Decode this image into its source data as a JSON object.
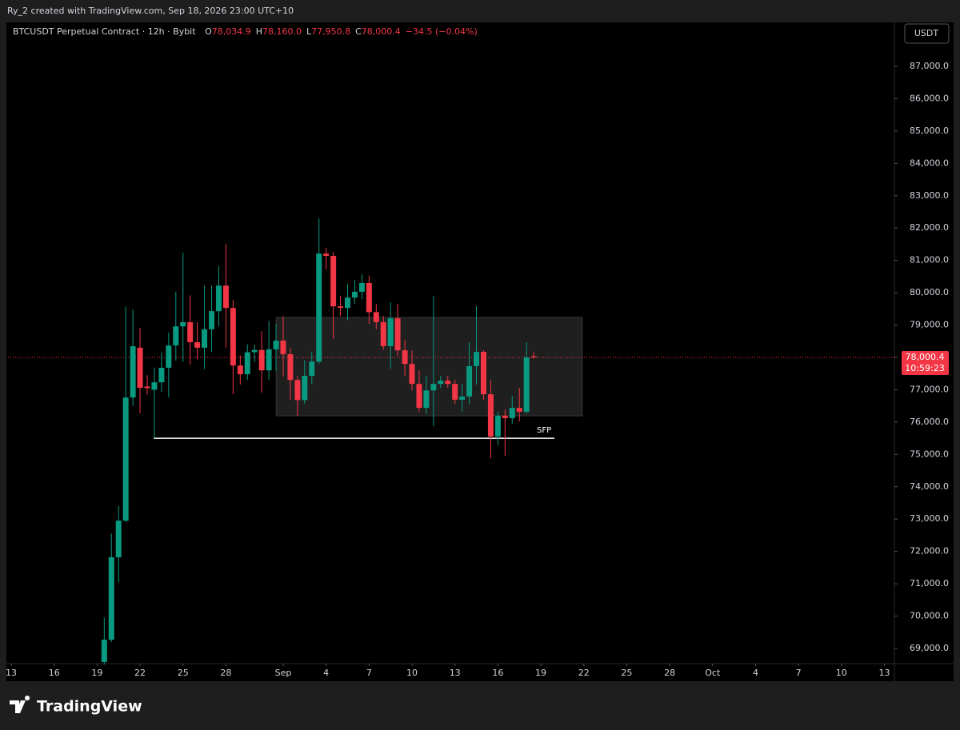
{
  "header": {
    "text": "Ry_2 created with TradingView.com, Sep 18, 2026 23:00 UTC+10"
  },
  "footer": {
    "logo": "TradingView"
  },
  "chart_data": {
    "type": "candlestick",
    "title": "BTCUSDT Perpetual Contract · 12h · Bybit",
    "legend": [
      {
        "label": "O",
        "value": "78,034.9"
      },
      {
        "label": "H",
        "value": "78,160.0"
      },
      {
        "label": "L",
        "value": "77,950.8"
      },
      {
        "label": "C",
        "value": "78,000.4"
      }
    ],
    "change": "−34.5 (−0.04%)",
    "currency": "USDT",
    "last_price_label": "78,000.4",
    "countdown": "10:59:23",
    "up_color": "#089981",
    "down_color": "#f23645",
    "x": [
      13,
      14,
      15,
      16,
      17,
      18,
      19,
      20,
      21,
      22,
      23,
      24,
      25,
      26,
      27,
      28,
      29,
      30,
      31,
      32,
      33,
      34,
      35,
      36,
      37,
      38,
      39,
      40,
      41,
      42,
      43,
      44,
      45,
      46,
      47,
      48,
      49,
      50,
      51,
      52,
      53,
      54,
      55,
      56,
      57,
      58,
      59,
      60,
      61,
      62,
      63,
      64,
      65,
      66,
      67,
      68,
      69,
      70,
      71,
      72,
      73
    ],
    "open": [
      68580,
      69270,
      71820,
      72950,
      76760,
      78300,
      77100,
      77000,
      77230,
      77680,
      78370,
      78960,
      79090,
      78470,
      78300,
      78870,
      79430,
      80220,
      79530,
      77750,
      77480,
      78160,
      78230,
      77600,
      78250,
      78520,
      78100,
      77300,
      76680,
      77430,
      77870,
      81210,
      81140,
      79580,
      79530,
      79850,
      80030,
      80300,
      79400,
      79090,
      78350,
      79210,
      78220,
      77800,
      77180,
      76440,
      76980,
      77180,
      77280,
      77180,
      76690,
      76790,
      77730,
      78170,
      76860,
      75550,
      76200,
      76120,
      76440,
      76320,
      78034.9
    ],
    "high": [
      69950,
      72550,
      73400,
      79580,
      79480,
      78910,
      77450,
      77680,
      78150,
      78760,
      80030,
      81240,
      79920,
      79090,
      80220,
      80220,
      80820,
      81510,
      79780,
      78060,
      78400,
      78400,
      78810,
      79130,
      79040,
      79280,
      78300,
      77430,
      77920,
      78170,
      82300,
      81380,
      81260,
      79900,
      80280,
      80400,
      80570,
      80530,
      79650,
      79280,
      79700,
      79650,
      78540,
      78220,
      77600,
      77430,
      79900,
      77430,
      77430,
      77310,
      77180,
      78470,
      79580,
      78220,
      77300,
      76320,
      76390,
      76810,
      77060,
      78470,
      78160
    ],
    "low": [
      68500,
      69200,
      71050,
      72900,
      76500,
      76270,
      76850,
      75500,
      76930,
      76770,
      77900,
      77860,
      77780,
      77940,
      77640,
      78170,
      78960,
      78300,
      76860,
      77160,
      77310,
      77850,
      76910,
      77310,
      77580,
      77410,
      76690,
      76190,
      76560,
      77180,
      77800,
      80720,
      78570,
      79280,
      79160,
      79650,
      79800,
      79030,
      78870,
      78240,
      77650,
      78050,
      77430,
      76980,
      76320,
      76250,
      75870,
      77060,
      77060,
      76560,
      76320,
      76560,
      77160,
      76690,
      74880,
      75280,
      74960,
      75950,
      76020,
      76250,
      77950.8
    ],
    "close": [
      69270,
      71820,
      72950,
      76760,
      78345,
      77060,
      77050,
      77230,
      77680,
      78370,
      78960,
      79090,
      78470,
      78300,
      78870,
      79430,
      80220,
      79530,
      77750,
      77480,
      78160,
      78230,
      77600,
      78250,
      78520,
      78100,
      77300,
      76680,
      77430,
      77870,
      81210,
      81140,
      79580,
      79530,
      79850,
      80030,
      80300,
      79400,
      79090,
      78350,
      79210,
      78220,
      77800,
      77180,
      76440,
      76980,
      77180,
      77280,
      77180,
      76690,
      76790,
      77730,
      78170,
      76860,
      75550,
      76200,
      76120,
      76440,
      76320,
      78000,
      78000.4
    ],
    "box": {
      "x": [
        37,
        79.8
      ],
      "y": [
        76190,
        79240
      ]
    },
    "hline": {
      "label": "SFP",
      "value": 75500,
      "x": [
        19.9,
        75.9
      ]
    },
    "xlim": [
      -0.45,
      123.4
    ],
    "xticks": [
      {
        "value": 0,
        "label": "13"
      },
      {
        "value": 6,
        "label": "16"
      },
      {
        "value": 12,
        "label": "19"
      },
      {
        "value": 18,
        "label": "22"
      },
      {
        "value": 24,
        "label": "25"
      },
      {
        "value": 30,
        "label": "28"
      },
      {
        "value": 38,
        "label": "Sep"
      },
      {
        "value": 44,
        "label": "4"
      },
      {
        "value": 50,
        "label": "7"
      },
      {
        "value": 56,
        "label": "10"
      },
      {
        "value": 62,
        "label": "13"
      },
      {
        "value": 68,
        "label": "16"
      },
      {
        "value": 74,
        "label": "19"
      },
      {
        "value": 80,
        "label": "22"
      },
      {
        "value": 86,
        "label": "25"
      },
      {
        "value": 92,
        "label": "28"
      },
      {
        "value": 98,
        "label": "Oct"
      },
      {
        "value": 104,
        "label": "4"
      },
      {
        "value": 110,
        "label": "7"
      },
      {
        "value": 116,
        "label": "10"
      },
      {
        "value": 122,
        "label": "13"
      }
    ],
    "ylim": [
      68530,
      88360
    ],
    "yticks": [
      {
        "value": 69000,
        "label": "69,000.0"
      },
      {
        "value": 70000,
        "label": "70,000.0"
      },
      {
        "value": 71000,
        "label": "71,000.0"
      },
      {
        "value": 72000,
        "label": "72,000.0"
      },
      {
        "value": 73000,
        "label": "73,000.0"
      },
      {
        "value": 74000,
        "label": "74,000.0"
      },
      {
        "value": 75000,
        "label": "75,000.0"
      },
      {
        "value": 76000,
        "label": "76,000.0"
      },
      {
        "value": 77000,
        "label": "77,000.0"
      },
      {
        "value": 78000,
        "label": "78,000.0"
      },
      {
        "value": 79000,
        "label": "79,000.0"
      },
      {
        "value": 80000,
        "label": "80,000.0"
      },
      {
        "value": 81000,
        "label": "81,000.0"
      },
      {
        "value": 82000,
        "label": "82,000.0"
      },
      {
        "value": 83000,
        "label": "83,000.0"
      },
      {
        "value": 84000,
        "label": "84,000.0"
      },
      {
        "value": 85000,
        "label": "85,000.0"
      },
      {
        "value": 86000,
        "label": "86,000.0"
      },
      {
        "value": 87000,
        "label": "87,000.0"
      }
    ]
  }
}
